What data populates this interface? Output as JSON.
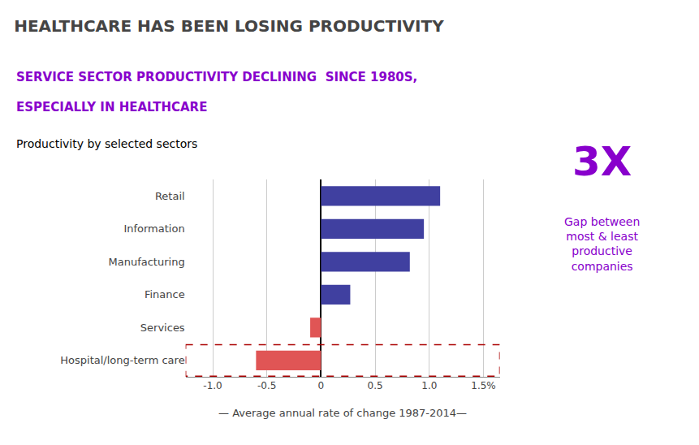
{
  "chart_data": {
    "type": "bar",
    "orientation": "horizontal",
    "title": "HEALTHCARE HAS BEEN LOSING PRODUCTIVITY",
    "subtitle": [
      {
        "text": "SERVICE SECTOR PRODUCTIVITY DECLINING  SINCE 1980S,",
        "color": "#8800cc"
      },
      {
        "text": "ESPECIALLY IN HEALTHCARE",
        "color": "#8800cc"
      }
    ],
    "annotations": [
      {
        "text": "Productivity by selected sectors"
      },
      {
        "text": "3X",
        "color": "#8800cc"
      },
      {
        "text": "Gap between\nmost & least\nproductive\ncompanies",
        "color": "#8800cc"
      }
    ],
    "categories": [
      "Retail",
      "Information",
      "Manufacturing",
      "Finance",
      "Services",
      "Hospital/long-term care"
    ],
    "values": [
      1.1,
      0.95,
      0.82,
      0.27,
      -0.1,
      -0.6
    ],
    "colors": [
      "#4040a0",
      "#4040a0",
      "#4040a0",
      "#4040a0",
      "#e05555",
      "#e05555"
    ],
    "xlabel": "— Average annual rate of change 1987-2014—",
    "xlim": [
      -1.25,
      1.65
    ],
    "xticks": [
      {
        "value": -1.0,
        "label": "-1.0"
      },
      -0.5,
      0,
      0.5,
      {
        "value": 1.0,
        "label": "1.0"
      },
      {
        "value": 1.5,
        "label": "1.5%"
      }
    ],
    "grid": true,
    "highlight": {
      "category": "Hospital/long-term care",
      "color": "#aa0000"
    }
  }
}
